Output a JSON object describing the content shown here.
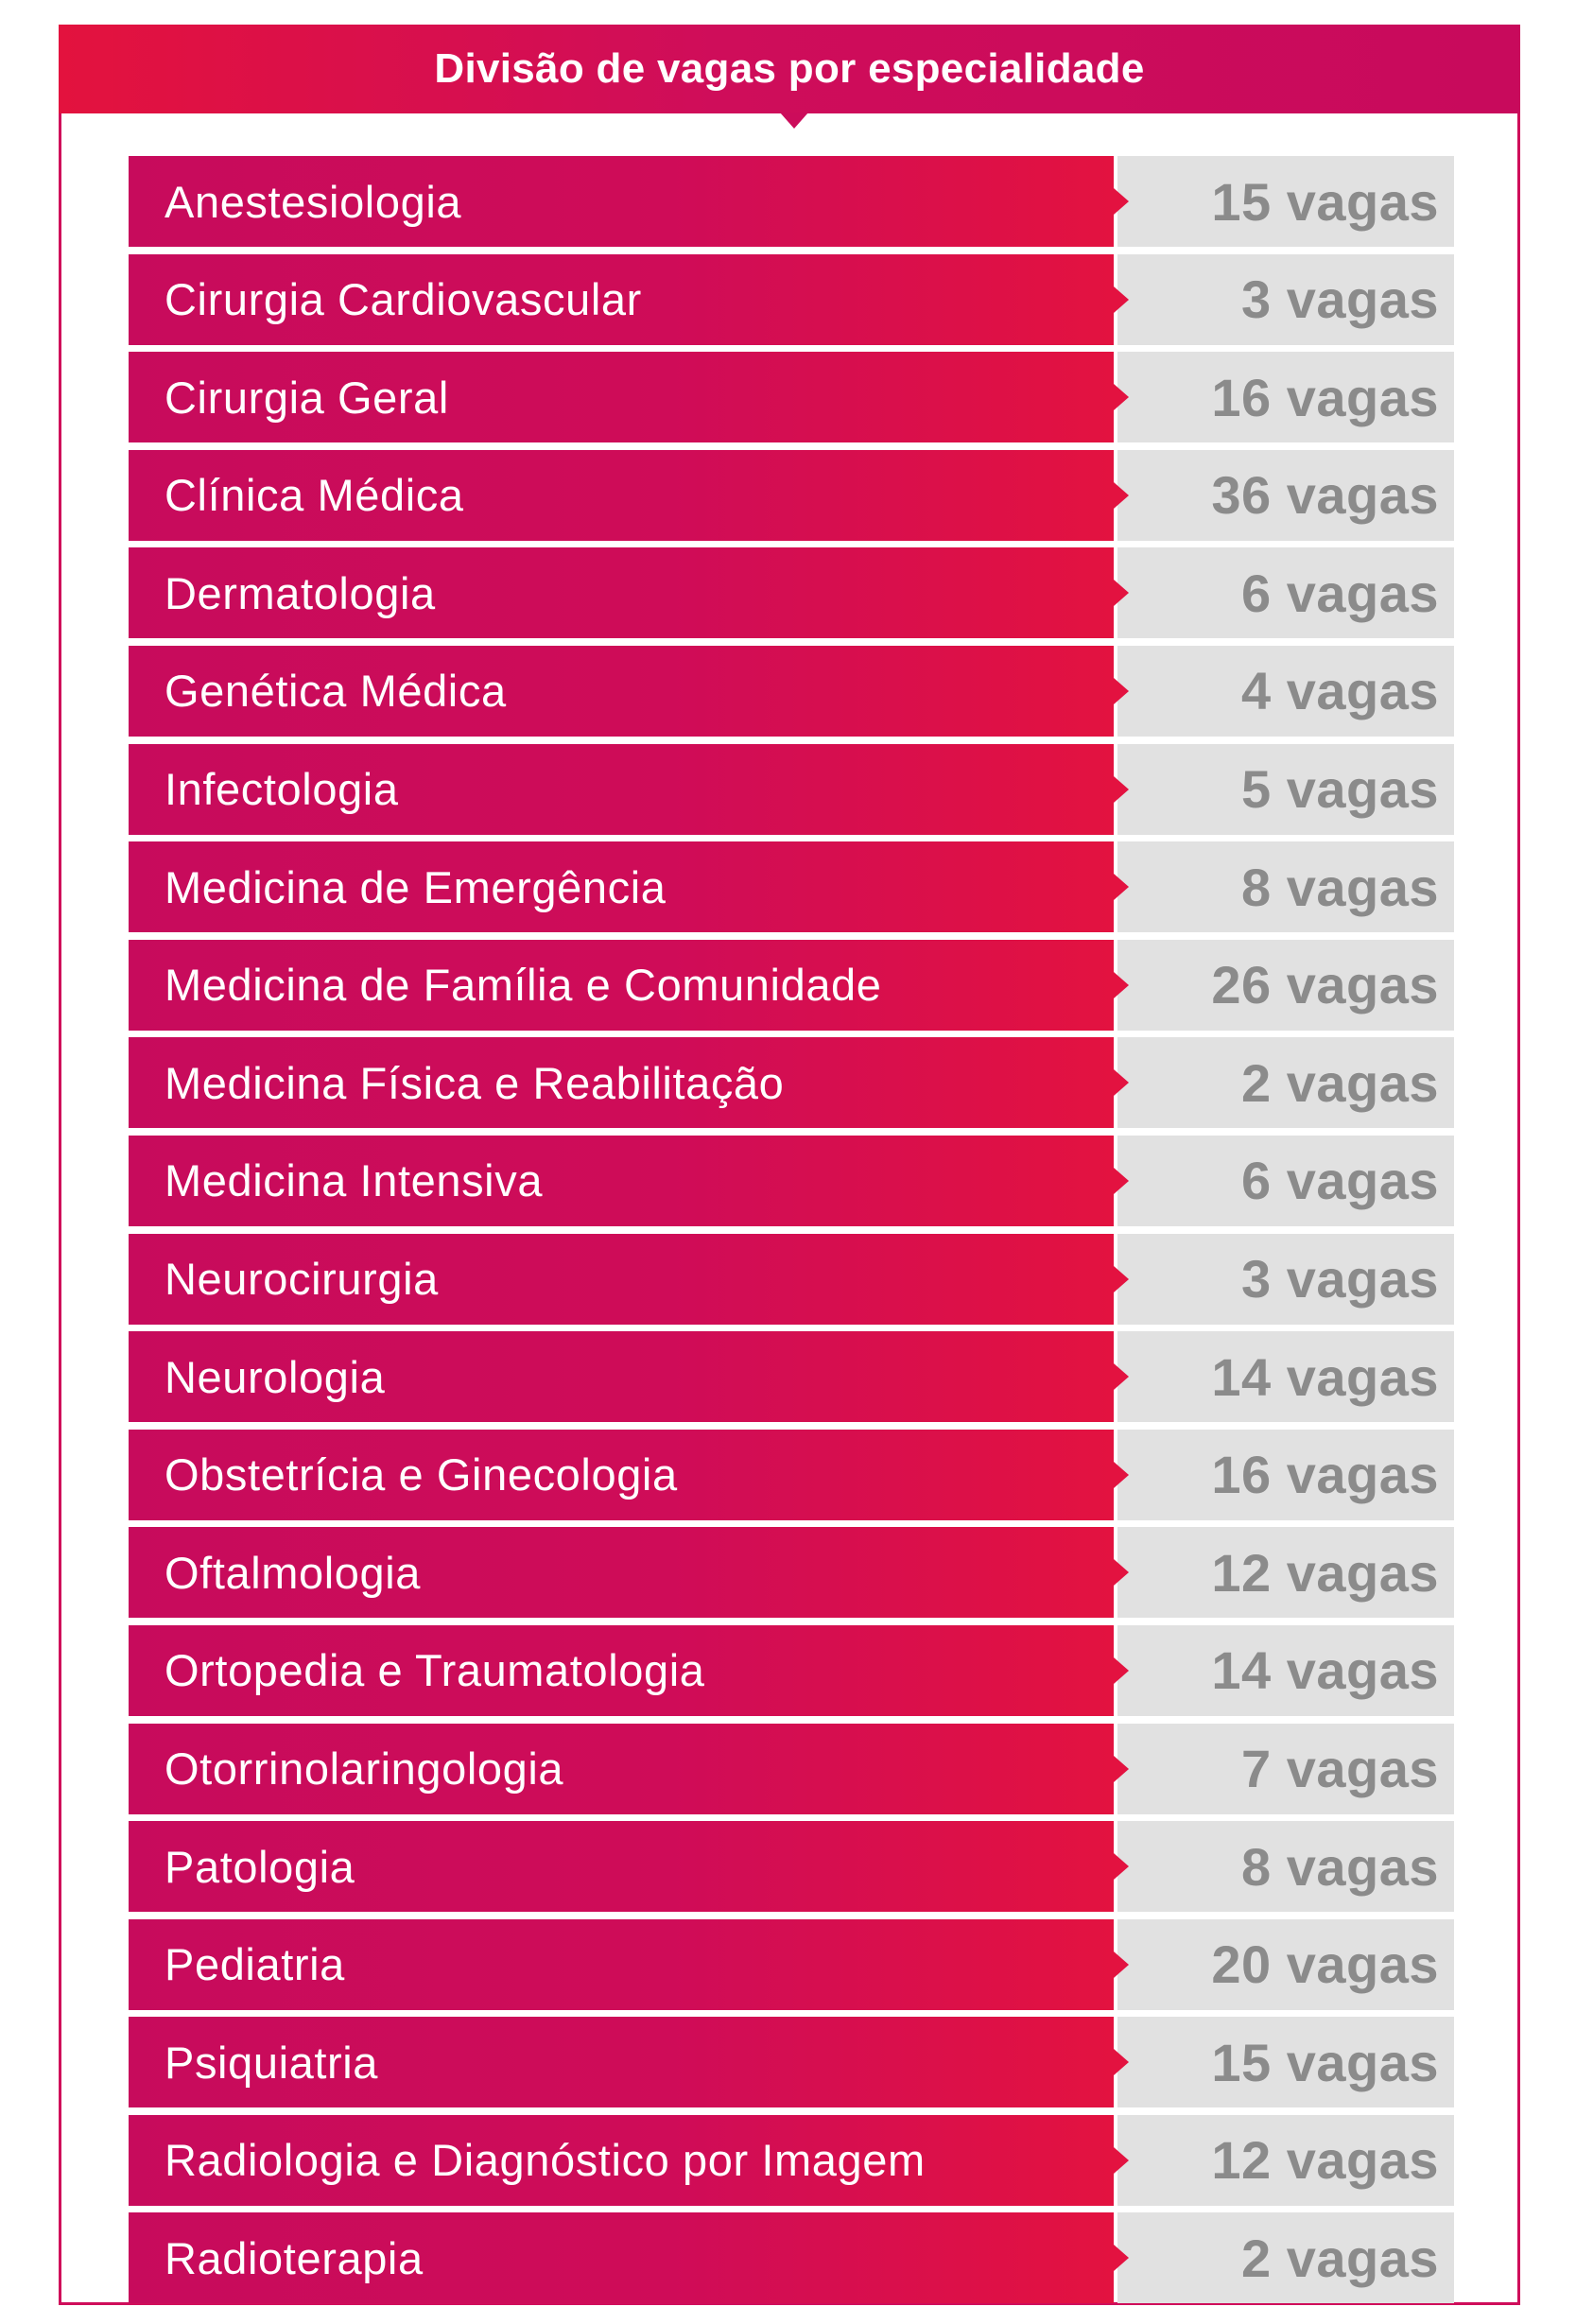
{
  "header": {
    "title": "Divisão de vagas por especialidade"
  },
  "colors": {
    "accent": "#cf0d5a",
    "accent_bright": "#e3123e",
    "value_background": "#e1e1e1",
    "value_text": "#8b8b8b",
    "label_text": "#ffffff"
  },
  "rows": [
    {
      "specialty": "Anestesiologia",
      "vagas": "15 vagas"
    },
    {
      "specialty": "Cirurgia Cardiovascular",
      "vagas": "3 vagas"
    },
    {
      "specialty": "Cirurgia Geral",
      "vagas": "16 vagas"
    },
    {
      "specialty": "Clínica Médica",
      "vagas": "36 vagas"
    },
    {
      "specialty": "Dermatologia",
      "vagas": "6 vagas"
    },
    {
      "specialty": "Genética Médica",
      "vagas": "4 vagas"
    },
    {
      "specialty": "Infectologia",
      "vagas": "5 vagas"
    },
    {
      "specialty": "Medicina de Emergência",
      "vagas": "8 vagas"
    },
    {
      "specialty": "Medicina de Família e Comunidade",
      "vagas": "26 vagas"
    },
    {
      "specialty": "Medicina Física e Reabilitação",
      "vagas": "2 vagas"
    },
    {
      "specialty": "Medicina Intensiva",
      "vagas": "6 vagas"
    },
    {
      "specialty": "Neurocirurgia",
      "vagas": "3 vagas"
    },
    {
      "specialty": "Neurologia",
      "vagas": "14 vagas"
    },
    {
      "specialty": "Obstetrícia e Ginecologia",
      "vagas": "16 vagas"
    },
    {
      "specialty": "Oftalmologia",
      "vagas": "12 vagas"
    },
    {
      "specialty": "Ortopedia e Traumatologia",
      "vagas": "14 vagas"
    },
    {
      "specialty": "Otorrinolaringologia",
      "vagas": "7 vagas"
    },
    {
      "specialty": "Patologia",
      "vagas": "8 vagas"
    },
    {
      "specialty": "Pediatria",
      "vagas": "20 vagas"
    },
    {
      "specialty": "Psiquiatria",
      "vagas": "15 vagas"
    },
    {
      "specialty": "Radiologia e Diagnóstico por Imagem",
      "vagas": "12 vagas"
    },
    {
      "specialty": "Radioterapia",
      "vagas": "2 vagas"
    }
  ]
}
